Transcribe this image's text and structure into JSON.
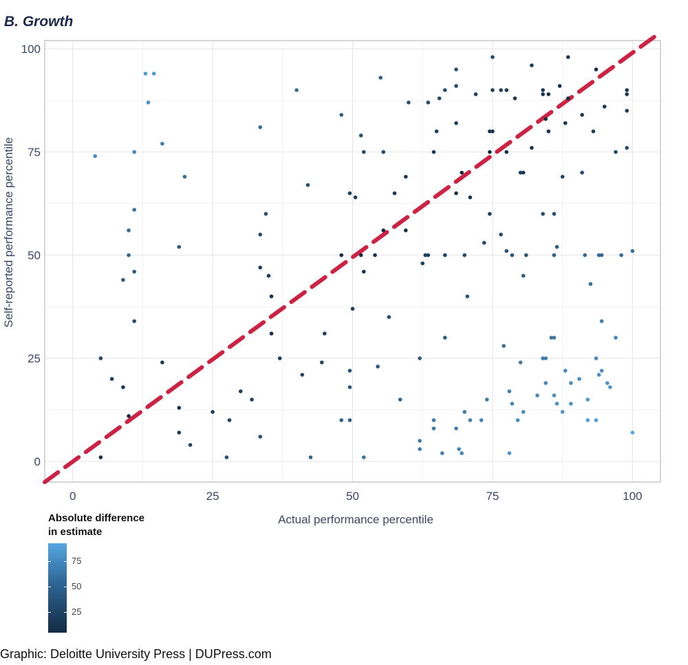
{
  "panel_title": "B. Growth",
  "credit": "Graphic: Deloitte University Press  |  DUPress.com",
  "legend": {
    "title_line1": "Absolute difference",
    "title_line2": "in estimate",
    "ticks": [
      "75",
      "50",
      "25"
    ]
  },
  "colors": {
    "dot_low": "#132b43",
    "dot_high": "#56a7e2",
    "reference_line": "#cc2344",
    "grid": "#e4e4e4",
    "axis_text": "#3a4668"
  },
  "chart_data": {
    "type": "scatter",
    "title": "B. Growth",
    "xlabel": "Actual performance percentile",
    "ylabel": "Self-reported performance percentile",
    "xlim": [
      -5,
      105
    ],
    "ylim": [
      -5,
      102
    ],
    "x_ticks": [
      "0",
      "25",
      "50",
      "75",
      "100"
    ],
    "y_ticks": [
      "0",
      "25",
      "50",
      "75",
      "100"
    ],
    "reference_line": {
      "style": "dashed",
      "from": [
        -5,
        -5
      ],
      "to": [
        105,
        104
      ]
    },
    "color_scale": {
      "label": "Absolute difference in estimate",
      "min": 0,
      "max": 90
    },
    "points": [
      [
        4,
        74
      ],
      [
        13,
        94
      ],
      [
        14.5,
        94
      ],
      [
        13.5,
        87
      ],
      [
        16,
        77
      ],
      [
        11,
        75
      ],
      [
        11,
        61
      ],
      [
        20,
        69
      ],
      [
        10,
        56
      ],
      [
        10,
        50
      ],
      [
        11,
        46
      ],
      [
        9,
        44
      ],
      [
        11,
        34
      ],
      [
        19,
        52
      ],
      [
        5,
        25
      ],
      [
        7,
        20
      ],
      [
        9,
        18
      ],
      [
        10,
        11
      ],
      [
        16,
        24
      ],
      [
        19,
        13
      ],
      [
        19,
        7
      ],
      [
        21,
        4
      ],
      [
        5,
        1
      ],
      [
        25,
        12
      ],
      [
        27.5,
        1
      ],
      [
        28,
        10
      ],
      [
        30,
        17
      ],
      [
        32,
        15
      ],
      [
        33.5,
        6
      ],
      [
        33.5,
        81
      ],
      [
        33.5,
        55
      ],
      [
        34.5,
        60
      ],
      [
        33.5,
        47
      ],
      [
        35,
        45
      ],
      [
        35.5,
        40
      ],
      [
        35.5,
        31
      ],
      [
        37,
        25
      ],
      [
        40,
        90
      ],
      [
        42,
        67
      ],
      [
        41,
        21
      ],
      [
        42.5,
        1
      ],
      [
        45,
        31
      ],
      [
        44.5,
        24
      ],
      [
        48,
        84
      ],
      [
        48,
        50
      ],
      [
        48,
        10
      ],
      [
        49.5,
        65
      ],
      [
        50.5,
        64
      ],
      [
        49.5,
        22
      ],
      [
        49.5,
        18
      ],
      [
        50,
        37
      ],
      [
        49.5,
        10
      ],
      [
        51.5,
        79
      ],
      [
        52,
        75
      ],
      [
        51.5,
        50
      ],
      [
        52,
        46
      ],
      [
        52,
        1
      ],
      [
        54,
        50
      ],
      [
        54.5,
        23
      ],
      [
        55,
        93
      ],
      [
        55.5,
        75
      ],
      [
        55.5,
        56
      ],
      [
        56.5,
        35
      ],
      [
        57.5,
        65
      ],
      [
        58.5,
        15
      ],
      [
        59.5,
        69
      ],
      [
        60,
        87
      ],
      [
        59.5,
        56
      ],
      [
        62,
        25
      ],
      [
        62,
        5
      ],
      [
        62,
        3
      ],
      [
        62.5,
        48
      ],
      [
        63,
        50
      ],
      [
        63.5,
        87
      ],
      [
        63.5,
        50
      ],
      [
        64.5,
        75
      ],
      [
        65,
        80
      ],
      [
        65.5,
        88
      ],
      [
        64.5,
        10
      ],
      [
        64.5,
        8
      ],
      [
        66,
        2
      ],
      [
        66.5,
        90
      ],
      [
        66.5,
        50
      ],
      [
        66.5,
        30
      ],
      [
        68.5,
        95
      ],
      [
        68.5,
        91
      ],
      [
        68.5,
        82
      ],
      [
        68.5,
        65
      ],
      [
        69.5,
        70
      ],
      [
        70,
        50
      ],
      [
        70.5,
        40
      ],
      [
        71,
        64
      ],
      [
        68.5,
        8
      ],
      [
        69,
        3
      ],
      [
        70,
        12
      ],
      [
        69.5,
        2
      ],
      [
        71,
        10
      ],
      [
        72,
        89
      ],
      [
        73,
        10
      ],
      [
        74,
        15
      ],
      [
        73.5,
        53
      ],
      [
        74.5,
        75
      ],
      [
        74.5,
        60
      ],
      [
        75,
        98
      ],
      [
        75,
        90
      ],
      [
        74.5,
        80
      ],
      [
        75,
        80
      ],
      [
        76.5,
        90
      ],
      [
        77.5,
        90
      ],
      [
        79,
        88
      ],
      [
        76.5,
        55
      ],
      [
        77.5,
        51
      ],
      [
        77,
        28
      ],
      [
        77.5,
        75
      ],
      [
        78.5,
        50
      ],
      [
        78,
        17
      ],
      [
        78.5,
        14
      ],
      [
        79.5,
        10
      ],
      [
        78,
        2
      ],
      [
        80,
        70
      ],
      [
        80.5,
        70
      ],
      [
        80.5,
        45
      ],
      [
        81,
        50
      ],
      [
        80,
        24
      ],
      [
        80.5,
        12
      ],
      [
        82,
        96
      ],
      [
        82,
        76
      ],
      [
        83,
        16
      ],
      [
        84,
        90
      ],
      [
        84,
        89
      ],
      [
        85,
        89
      ],
      [
        84,
        60
      ],
      [
        84,
        25
      ],
      [
        84.5,
        25
      ],
      [
        84.5,
        19
      ],
      [
        84.5,
        83
      ],
      [
        85,
        80
      ],
      [
        86,
        60
      ],
      [
        86,
        50
      ],
      [
        86.5,
        52
      ],
      [
        85.5,
        30
      ],
      [
        86,
        30
      ],
      [
        86,
        16
      ],
      [
        86.5,
        14
      ],
      [
        87,
        91
      ],
      [
        87.5,
        69
      ],
      [
        87.5,
        12
      ],
      [
        88,
        82
      ],
      [
        88,
        22
      ],
      [
        88.5,
        98
      ],
      [
        88.5,
        88
      ],
      [
        89,
        19
      ],
      [
        89,
        14
      ],
      [
        90.5,
        20
      ],
      [
        91,
        84
      ],
      [
        91,
        70
      ],
      [
        91.5,
        50
      ],
      [
        92,
        15
      ],
      [
        92,
        10
      ],
      [
        92.5,
        43
      ],
      [
        93,
        80
      ],
      [
        93.5,
        95
      ],
      [
        93.5,
        25
      ],
      [
        93.5,
        10
      ],
      [
        94,
        50
      ],
      [
        94,
        21
      ],
      [
        94.5,
        50
      ],
      [
        94.5,
        34
      ],
      [
        94.5,
        22
      ],
      [
        95,
        86
      ],
      [
        95.5,
        19
      ],
      [
        96,
        18
      ],
      [
        97,
        75
      ],
      [
        97,
        30
      ],
      [
        98,
        50
      ],
      [
        99,
        90
      ],
      [
        99,
        89
      ],
      [
        99,
        85
      ],
      [
        99,
        76
      ],
      [
        100,
        51
      ],
      [
        100,
        7
      ]
    ]
  }
}
